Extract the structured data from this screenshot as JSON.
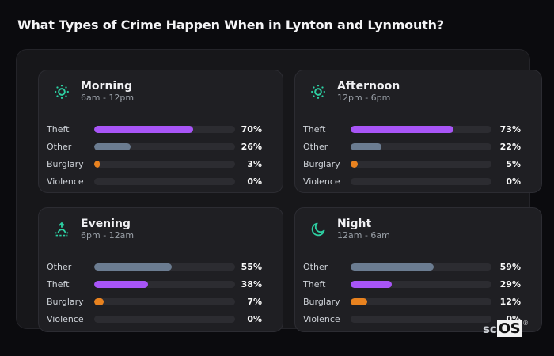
{
  "page": {
    "title": "What Types of Crime Happen When in Lynton and Lynmouth?",
    "watermark": {
      "prefix": "sc",
      "suffix": "OS",
      "registered": "®"
    }
  },
  "colors": {
    "background": "#0b0b0e",
    "panel_group": "#17171a",
    "card": "#1f1f23",
    "track": "#2c2c31",
    "accent_icon": "#2dcfa2",
    "theft": "#a855f7",
    "other": "#6b7c91",
    "burglary": "#e8821f",
    "violence": "#a855f7",
    "text_primary": "#f0f0f3",
    "text_secondary": "#9aa0a8"
  },
  "chart_data": [
    {
      "type": "bar",
      "orientation": "horizontal",
      "title": "Morning",
      "subtitle": "6am - 12pm",
      "icon": "sun-icon",
      "unit": "%",
      "xlim": [
        0,
        100
      ],
      "categories": [
        "Theft",
        "Other",
        "Burglary",
        "Violence"
      ],
      "values": [
        70,
        26,
        3,
        0
      ],
      "value_labels": [
        "70%",
        "26%",
        "3%",
        "0%"
      ]
    },
    {
      "type": "bar",
      "orientation": "horizontal",
      "title": "Afternoon",
      "subtitle": "12pm - 6pm",
      "icon": "sun-icon",
      "unit": "%",
      "xlim": [
        0,
        100
      ],
      "categories": [
        "Theft",
        "Other",
        "Burglary",
        "Violence"
      ],
      "values": [
        73,
        22,
        5,
        0
      ],
      "value_labels": [
        "73%",
        "22%",
        "5%",
        "0%"
      ]
    },
    {
      "type": "bar",
      "orientation": "horizontal",
      "title": "Evening",
      "subtitle": "6pm - 12am",
      "icon": "sunrise-icon",
      "unit": "%",
      "xlim": [
        0,
        100
      ],
      "categories": [
        "Other",
        "Theft",
        "Burglary",
        "Violence"
      ],
      "values": [
        55,
        38,
        7,
        0
      ],
      "value_labels": [
        "55%",
        "38%",
        "7%",
        "0%"
      ]
    },
    {
      "type": "bar",
      "orientation": "horizontal",
      "title": "Night",
      "subtitle": "12am - 6am",
      "icon": "moon-icon",
      "unit": "%",
      "xlim": [
        0,
        100
      ],
      "categories": [
        "Other",
        "Theft",
        "Burglary",
        "Violence"
      ],
      "values": [
        59,
        29,
        12,
        0
      ],
      "value_labels": [
        "59%",
        "29%",
        "12%",
        "0%"
      ]
    }
  ]
}
